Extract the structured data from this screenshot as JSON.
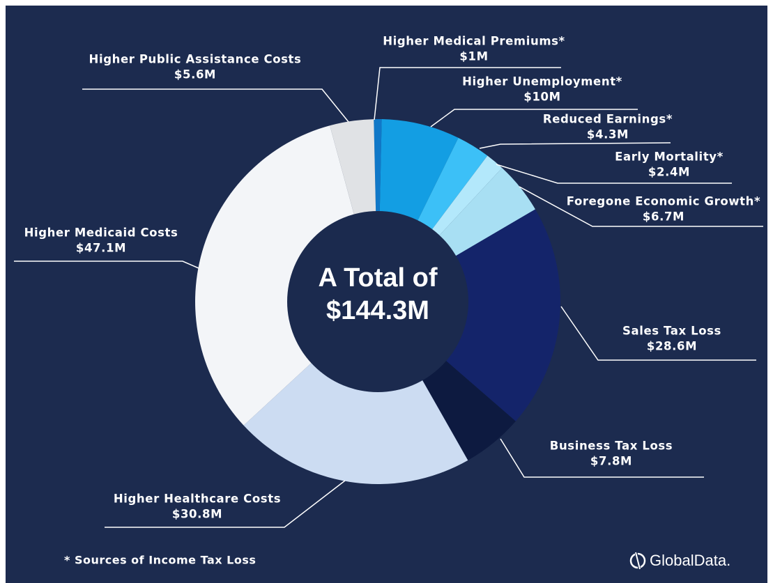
{
  "chart_data": {
    "type": "donut",
    "center_text": [
      "A Total of",
      "$144.3M"
    ],
    "categories": [
      "Higher Medical Premiums*",
      "Higher Unemployment*",
      "Reduced Earnings*",
      "Early Mortality*",
      "Foregone Economic Growth*",
      "Sales Tax Loss",
      "Business Tax Loss",
      "Higher Healthcare Costs",
      "Higher Medicaid Costs",
      "Higher Public Assistance Costs"
    ],
    "values": [
      1,
      10,
      4.3,
      2.4,
      6.7,
      28.6,
      7.8,
      30.8,
      47.1,
      5.6
    ],
    "value_labels": [
      "$1M",
      "$10M",
      "$4.3M",
      "$2.4M",
      "$6.7M",
      "$28.6M",
      "$7.8M",
      "$30.8M",
      "$47.1M",
      "$5.6M"
    ],
    "colors": [
      "#1078c8",
      "#139ee3",
      "#3cc0f7",
      "#b3e8fb",
      "#a8dff3",
      "#14246a",
      "#0d1a40",
      "#ccdcf2",
      "#f3f5f8",
      "#e0e2e5"
    ],
    "footnote": "*  Sources of Income Tax Loss",
    "source_logo": "GlobalData."
  }
}
